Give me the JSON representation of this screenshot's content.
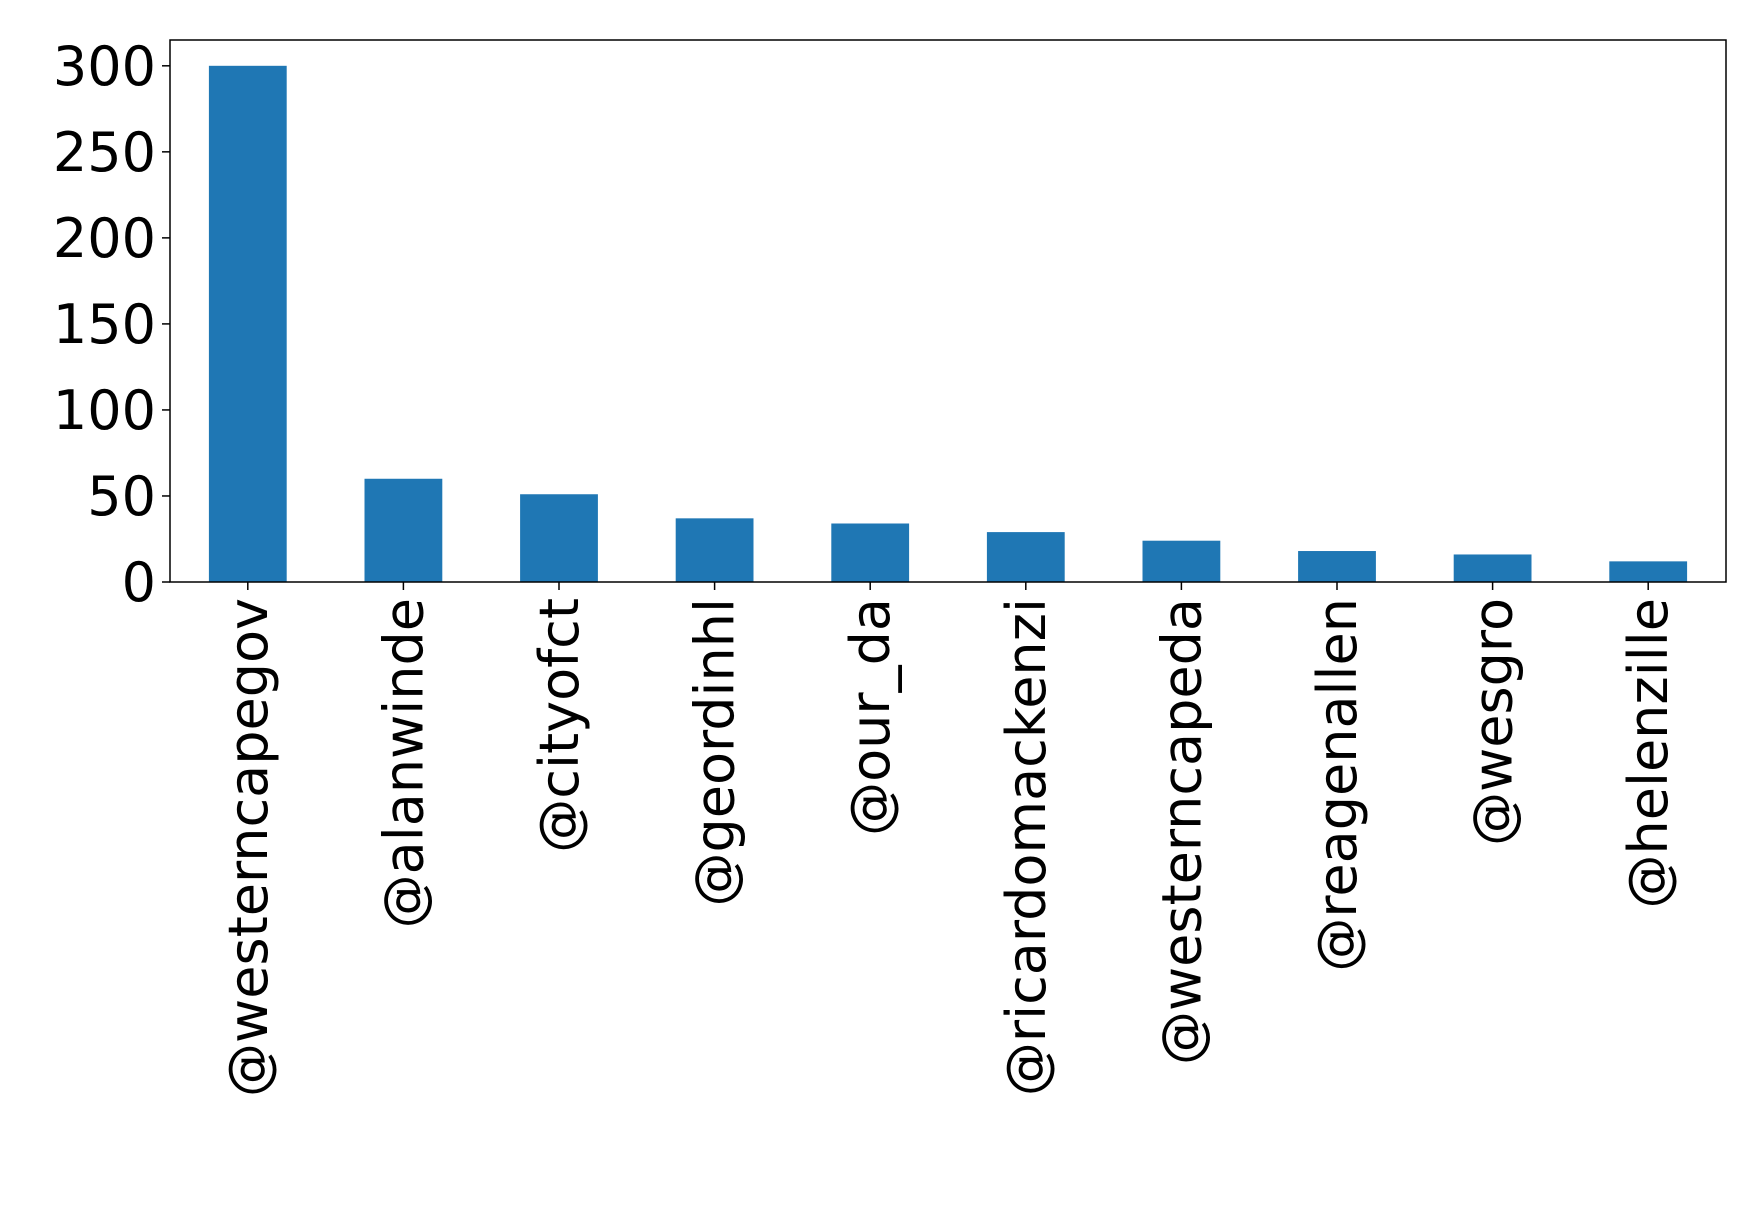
{
  "chart_data": {
    "type": "bar",
    "categories": [
      "@westerncapegov",
      "@alanwinde",
      "@cityofct",
      "@geordinhl",
      "@our_da",
      "@ricardomackenzi",
      "@westerncapeda",
      "@reagenallen",
      "@wesgro",
      "@helenzille"
    ],
    "values": [
      300,
      60,
      51,
      37,
      34,
      29,
      24,
      18,
      16,
      12
    ],
    "yticks": [
      "0",
      "50",
      "100",
      "150",
      "200",
      "250",
      "300"
    ],
    "ytick_values": [
      0,
      50,
      100,
      150,
      200,
      250,
      300
    ],
    "ylim": [
      0,
      315
    ],
    "title": "",
    "xlabel": "",
    "ylabel": "",
    "bar_color": "#1f77b4",
    "grid": false,
    "legend": false
  }
}
